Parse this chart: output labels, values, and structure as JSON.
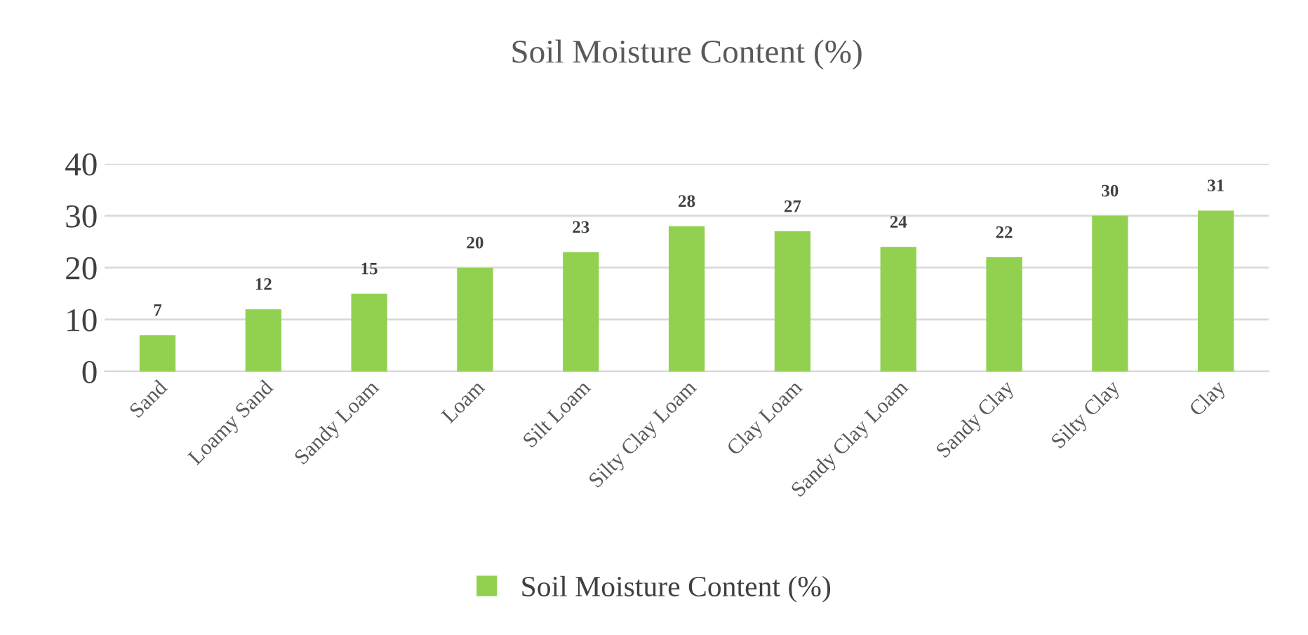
{
  "chart_data": {
    "type": "bar",
    "title": "Soil Moisture Content (%)",
    "categories": [
      "Sand",
      "Loamy Sand",
      "Sandy Loam",
      "Loam",
      "Silt Loam",
      "Silty Clay Loam",
      "Clay Loam",
      "Sandy Clay Loam",
      "Sandy Clay",
      "Silty Clay",
      "Clay"
    ],
    "series": [
      {
        "name": "Soil Moisture Content (%)",
        "color": "#92d050",
        "values": [
          7,
          12,
          15,
          20,
          23,
          28,
          27,
          24,
          22,
          30,
          31
        ]
      }
    ],
    "ylim": [
      0,
      40
    ],
    "yticks": [
      0,
      10,
      20,
      30,
      40
    ],
    "grid": "y",
    "legend": "bottom",
    "data_labels": true
  }
}
